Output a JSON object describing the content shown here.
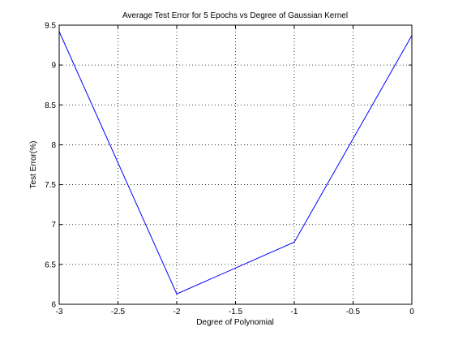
{
  "chart_data": {
    "type": "line",
    "title": "Average Test Error for 5 Epochs vs Degree of Gaussian Kernel",
    "xlabel": "Degree of Polynomial",
    "ylabel": "Test Error(%)",
    "xlim": [
      -3,
      0
    ],
    "ylim": [
      6,
      9.5
    ],
    "xticks": [
      -3,
      -2.5,
      -2,
      -1.5,
      -1,
      -0.5,
      0
    ],
    "xtick_labels": [
      "-3",
      "-2.5",
      "-2",
      "-1.5",
      "-1",
      "-0.5",
      "0"
    ],
    "yticks": [
      6,
      6.5,
      7,
      7.5,
      8,
      8.5,
      9,
      9.5
    ],
    "ytick_labels": [
      "6",
      "6.5",
      "7",
      "7.5",
      "8",
      "8.5",
      "9",
      "9.5"
    ],
    "grid": true,
    "series": [
      {
        "color": "#0000ff",
        "x": [
          -3,
          -2,
          -1,
          0
        ],
        "y": [
          9.42,
          6.13,
          6.78,
          9.37
        ]
      }
    ]
  }
}
